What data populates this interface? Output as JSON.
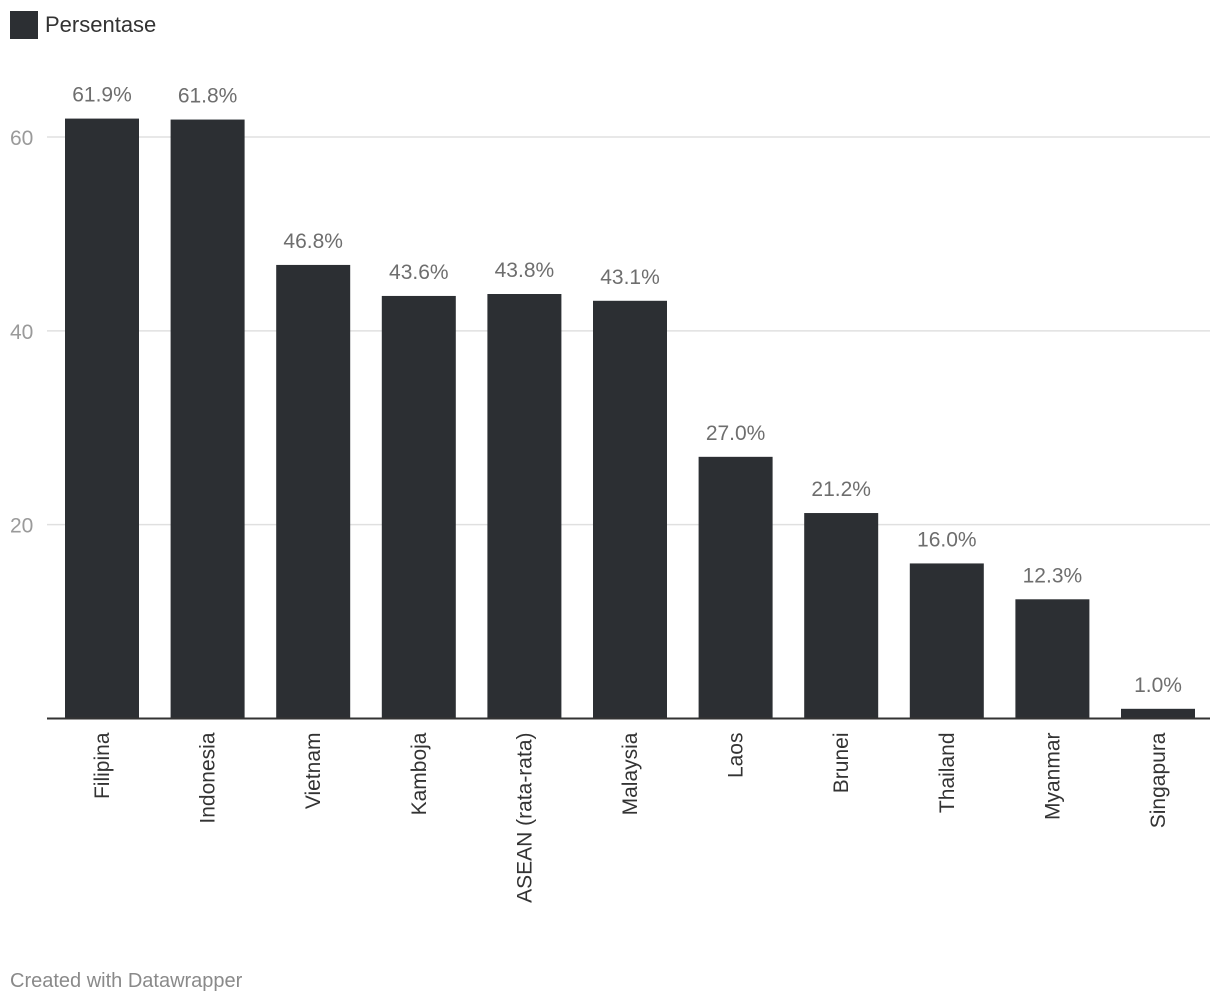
{
  "legend": {
    "label": "Persentase",
    "color": "#2c2f33"
  },
  "credit": "Created with Datawrapper",
  "chart_data": {
    "type": "bar",
    "title": "",
    "xlabel": "",
    "ylabel": "",
    "series": [
      {
        "name": "Persentase",
        "color": "#2c2f33",
        "values": [
          61.9,
          61.8,
          46.8,
          43.6,
          43.8,
          43.1,
          27.0,
          21.2,
          16.0,
          12.3,
          1.0
        ],
        "value_labels": [
          "61.9%",
          "61.8%",
          "46.8%",
          "43.6%",
          "43.8%",
          "43.1%",
          "27.0%",
          "21.2%",
          "16.0%",
          "12.3%",
          "1.0%"
        ]
      }
    ],
    "categories": [
      "Filipina",
      "Indonesia",
      "Vietnam",
      "Kamboja",
      "ASEAN (rata-rata)",
      "Malaysia",
      "Laos",
      "Brunei",
      "Thailand",
      "Myanmar",
      "Singapura"
    ],
    "ylim": [
      0,
      60
    ],
    "yticks": [
      20,
      40,
      60
    ],
    "grid": true,
    "legend_position": "top-left",
    "bar_color": "#2c2f33",
    "grid_color": "#e0e0e0",
    "axis_color": "#333333"
  }
}
